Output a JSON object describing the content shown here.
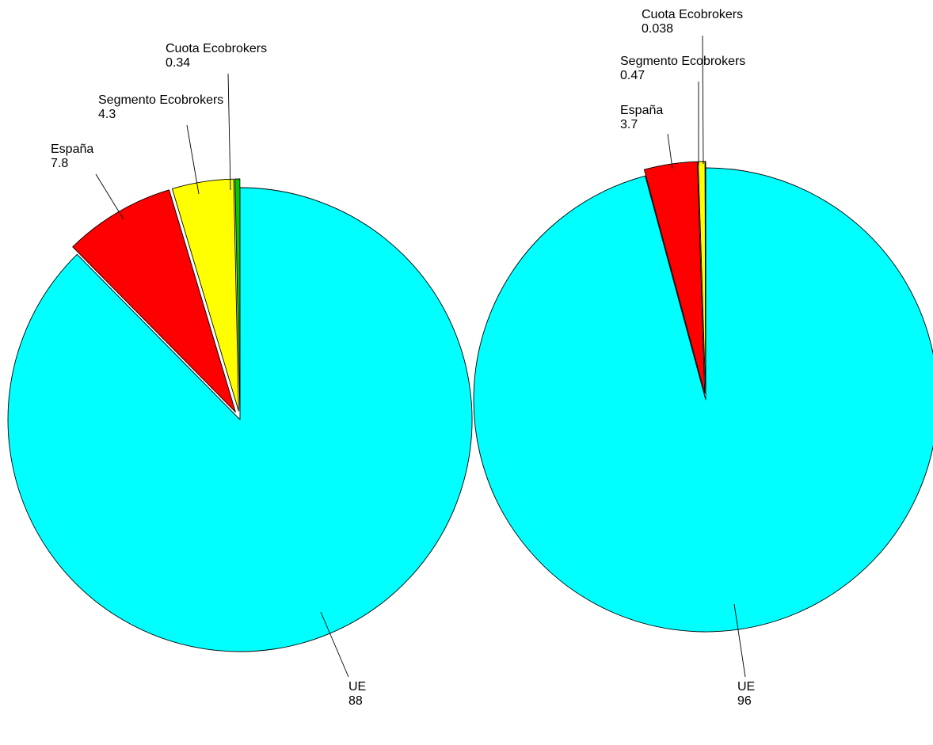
{
  "chart_data": [
    {
      "type": "pie",
      "slices": [
        {
          "label": "UE",
          "value": 88,
          "value_text": "88",
          "color": "#00ffff",
          "exploded": false
        },
        {
          "label": "España",
          "value": 7.8,
          "value_text": "7.8",
          "color": "#ff0000",
          "exploded": true
        },
        {
          "label": "Segmento Ecobrokers",
          "value": 4.3,
          "value_text": "4.3",
          "color": "#ffff00",
          "exploded": true
        },
        {
          "label": "Cuota Ecobrokers",
          "value": 0.34,
          "value_text": "0.34",
          "color": "#00cc00",
          "exploded": true
        }
      ],
      "start": "12 o'clock",
      "direction": "clockwise"
    },
    {
      "type": "pie",
      "slices": [
        {
          "label": "UE",
          "value": 96,
          "value_text": "96",
          "color": "#00ffff",
          "exploded": false
        },
        {
          "label": "España",
          "value": 3.7,
          "value_text": "3.7",
          "color": "#ff0000",
          "exploded": true
        },
        {
          "label": "Segmento Ecobrokers",
          "value": 0.47,
          "value_text": "0.47",
          "color": "#ffff00",
          "exploded": true
        },
        {
          "label": "Cuota Ecobrokers",
          "value": 0.038,
          "value_text": "0.038",
          "color": "#00cc00",
          "exploded": true
        }
      ],
      "start": "12 o'clock",
      "direction": "clockwise"
    }
  ]
}
